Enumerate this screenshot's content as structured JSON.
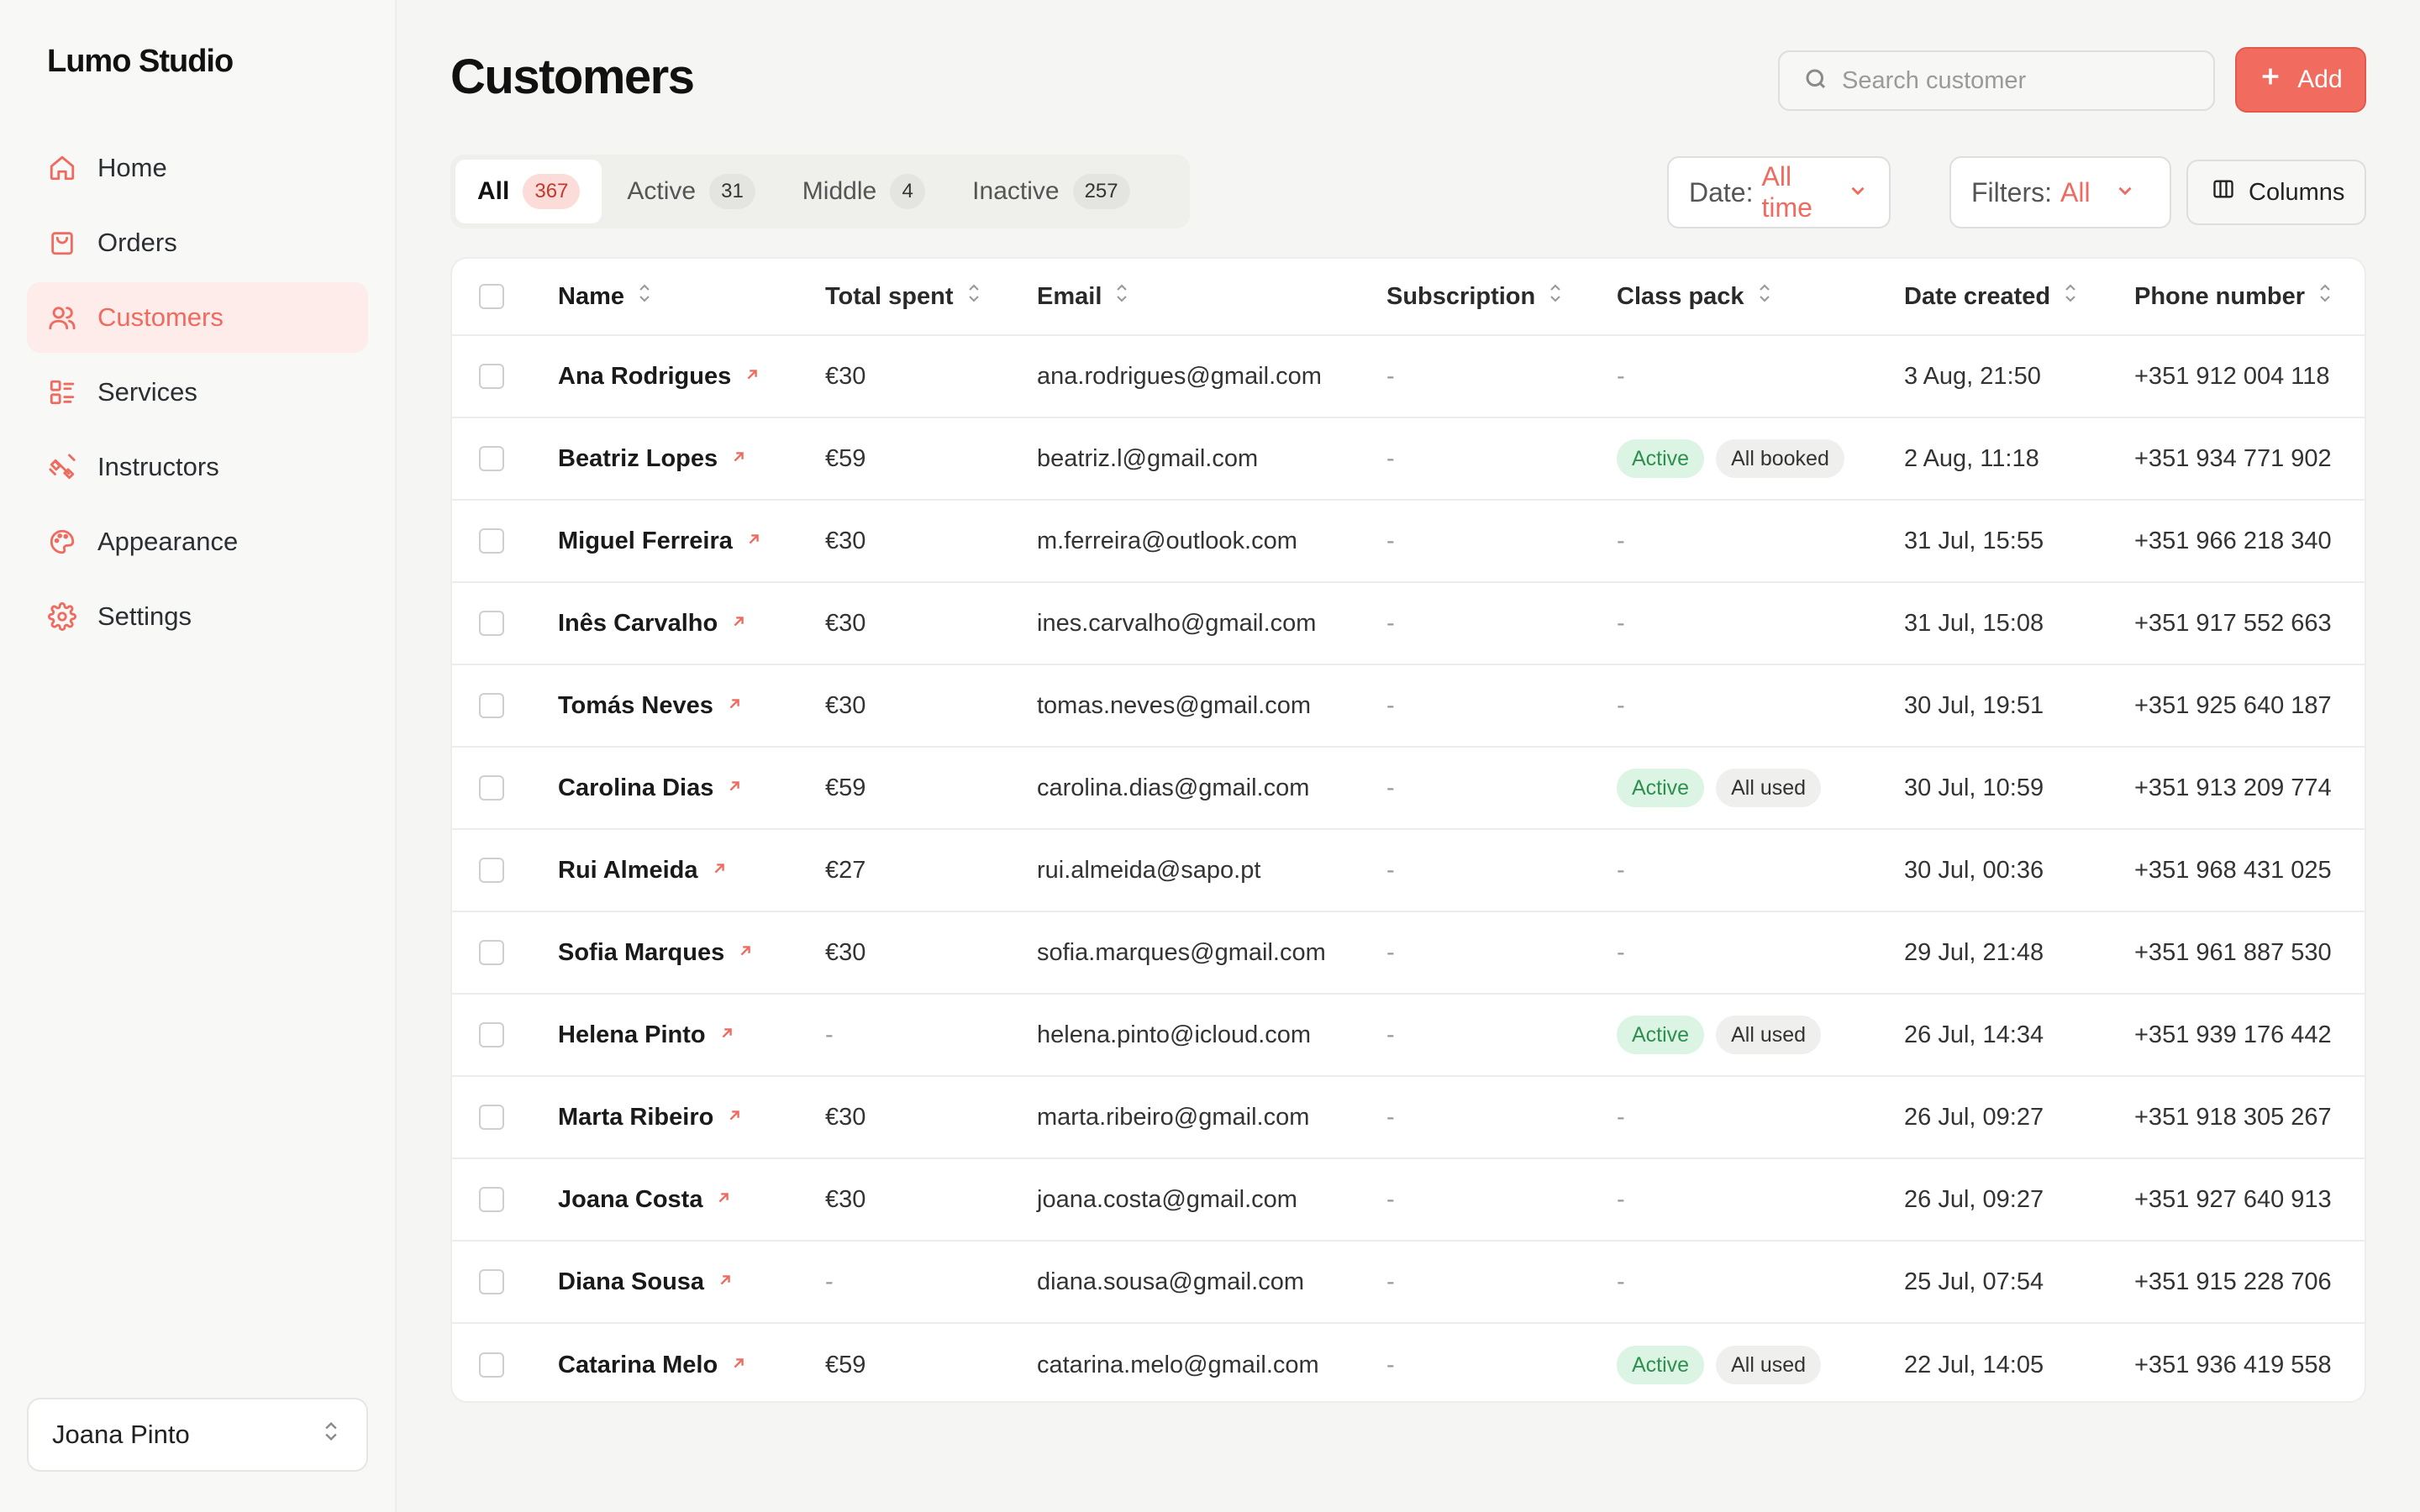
{
  "brand": "Lumo Studio",
  "sidebar": {
    "items": [
      {
        "label": "Home",
        "icon": "home-icon"
      },
      {
        "label": "Orders",
        "icon": "bag-icon"
      },
      {
        "label": "Customers",
        "icon": "users-icon",
        "active": true
      },
      {
        "label": "Services",
        "icon": "list-icon"
      },
      {
        "label": "Instructors",
        "icon": "dumbbell-icon"
      },
      {
        "label": "Appearance",
        "icon": "palette-icon"
      },
      {
        "label": "Settings",
        "icon": "gear-icon"
      }
    ],
    "user": "Joana Pinto"
  },
  "header": {
    "title": "Customers",
    "search_placeholder": "Search customer",
    "add_label": "Add"
  },
  "tabs": [
    {
      "label": "All",
      "count": "367"
    },
    {
      "label": "Active",
      "count": "31"
    },
    {
      "label": "Middle",
      "count": "4"
    },
    {
      "label": "Inactive",
      "count": "257"
    }
  ],
  "filters": {
    "date_label": "Date:",
    "date_value": "All time",
    "filters_label": "Filters:",
    "filters_value": "All",
    "columns_label": "Columns"
  },
  "table": {
    "columns": [
      "Name",
      "Total spent",
      "Email",
      "Subscription",
      "Class pack",
      "Date created",
      "Phone number"
    ],
    "rows": [
      {
        "name": "Ana Rodrigues",
        "total": "€30",
        "email": "ana.rodrigues@gmail.com",
        "subscription": "-",
        "pack_status": "",
        "pack_detail": "",
        "pack": "-",
        "date": "3 Aug, 21:50",
        "phone": "+351 912 004 118"
      },
      {
        "name": "Beatriz Lopes",
        "total": "€59",
        "email": "beatriz.l@gmail.com",
        "subscription": "-",
        "pack_status": "Active",
        "pack_detail": "All booked",
        "pack": "",
        "date": "2 Aug, 11:18",
        "phone": "+351 934 771 902"
      },
      {
        "name": "Miguel Ferreira",
        "total": "€30",
        "email": "m.ferreira@outlook.com",
        "subscription": "-",
        "pack_status": "",
        "pack_detail": "",
        "pack": "-",
        "date": "31 Jul, 15:55",
        "phone": "+351 966 218 340"
      },
      {
        "name": "Inês Carvalho",
        "total": "€30",
        "email": "ines.carvalho@gmail.com",
        "subscription": "-",
        "pack_status": "",
        "pack_detail": "",
        "pack": "-",
        "date": "31 Jul, 15:08",
        "phone": "+351 917 552 663"
      },
      {
        "name": "Tomás Neves",
        "total": "€30",
        "email": "tomas.neves@gmail.com",
        "subscription": "-",
        "pack_status": "",
        "pack_detail": "",
        "pack": "-",
        "date": "30 Jul, 19:51",
        "phone": "+351 925 640 187"
      },
      {
        "name": "Carolina Dias",
        "total": "€59",
        "email": "carolina.dias@gmail.com",
        "subscription": "-",
        "pack_status": "Active",
        "pack_detail": "All used",
        "pack": "",
        "date": "30 Jul, 10:59",
        "phone": "+351 913 209 774"
      },
      {
        "name": "Rui Almeida",
        "total": "€27",
        "email": "rui.almeida@sapo.pt",
        "subscription": "-",
        "pack_status": "",
        "pack_detail": "",
        "pack": "-",
        "date": "30 Jul, 00:36",
        "phone": "+351 968 431 025"
      },
      {
        "name": "Sofia Marques",
        "total": "€30",
        "email": "sofia.marques@gmail.com",
        "subscription": "-",
        "pack_status": "",
        "pack_detail": "",
        "pack": "-",
        "date": "29 Jul, 21:48",
        "phone": "+351 961 887 530"
      },
      {
        "name": "Helena Pinto",
        "total": "-",
        "email": "helena.pinto@icloud.com",
        "subscription": "-",
        "pack_status": "Active",
        "pack_detail": "All used",
        "pack": "",
        "date": "26 Jul, 14:34",
        "phone": "+351 939 176 442"
      },
      {
        "name": "Marta Ribeiro",
        "total": "€30",
        "email": "marta.ribeiro@gmail.com",
        "subscription": "-",
        "pack_status": "",
        "pack_detail": "",
        "pack": "-",
        "date": "26 Jul, 09:27",
        "phone": "+351 918 305 267"
      },
      {
        "name": "Joana Costa",
        "total": "€30",
        "email": "joana.costa@gmail.com",
        "subscription": "-",
        "pack_status": "",
        "pack_detail": "",
        "pack": "-",
        "date": "26 Jul, 09:27",
        "phone": "+351 927 640 913"
      },
      {
        "name": "Diana Sousa",
        "total": "-",
        "email": "diana.sousa@gmail.com",
        "subscription": "-",
        "pack_status": "",
        "pack_detail": "",
        "pack": "-",
        "date": "25 Jul, 07:54",
        "phone": "+351 915 228 706"
      },
      {
        "name": "Catarina Melo",
        "total": "€59",
        "email": "catarina.melo@gmail.com",
        "subscription": "-",
        "pack_status": "Active",
        "pack_detail": "All used",
        "pack": "",
        "date": "22 Jul, 14:05",
        "phone": "+351 936 419 558"
      }
    ]
  },
  "colors": {
    "accent": "#ef6b60",
    "active_badge_bg": "#dcf4e3",
    "active_badge_text": "#2f8f4e"
  }
}
